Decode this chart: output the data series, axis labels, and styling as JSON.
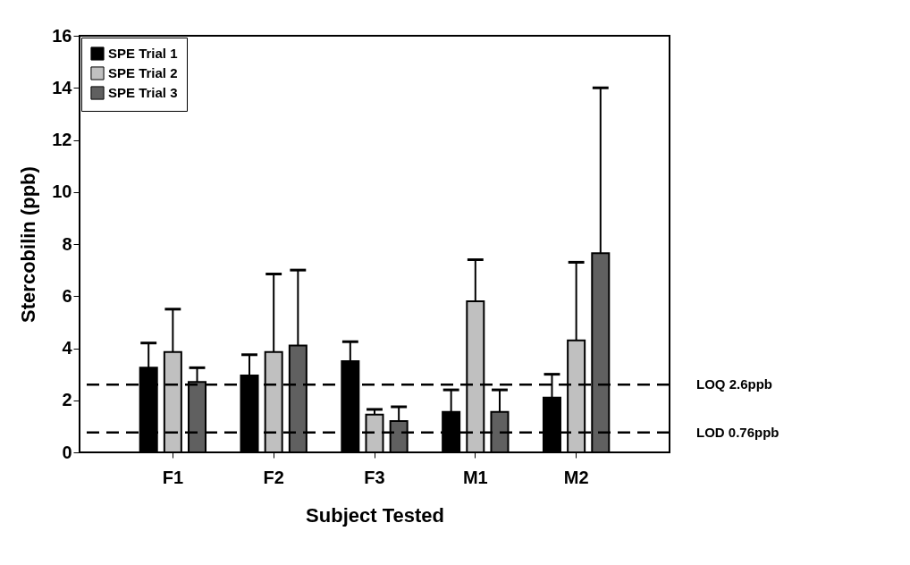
{
  "chart_data": {
    "type": "bar",
    "xlabel": "Subject Tested",
    "ylabel": "Stercobilin (ppb)",
    "categories": [
      "F1",
      "F2",
      "F3",
      "M1",
      "M2"
    ],
    "series": [
      {
        "name": "SPE Trial 1",
        "color": "#000000",
        "values": [
          3.25,
          2.95,
          3.5,
          1.55,
          2.1
        ],
        "errors": [
          [
            3.25,
            4.2
          ],
          [
            2.95,
            3.75
          ],
          [
            3.5,
            4.25
          ],
          [
            1.55,
            2.4
          ],
          [
            2.1,
            3.0
          ]
        ]
      },
      {
        "name": "SPE Trial 2",
        "color": "#c0c0c0",
        "values": [
          3.85,
          3.85,
          1.45,
          5.8,
          4.3
        ],
        "errors": [
          [
            3.85,
            5.5
          ],
          [
            3.85,
            6.85
          ],
          [
            1.45,
            1.65
          ],
          [
            5.8,
            7.4
          ],
          [
            4.3,
            7.3
          ]
        ]
      },
      {
        "name": "SPE Trial 3",
        "color": "#606060",
        "values": [
          2.7,
          4.1,
          1.2,
          1.55,
          7.65
        ],
        "errors": [
          [
            2.7,
            3.25
          ],
          [
            4.1,
            7.0
          ],
          [
            1.2,
            1.75
          ],
          [
            1.55,
            2.4
          ],
          [
            7.65,
            14.0
          ]
        ]
      }
    ],
    "ylim": [
      0,
      16
    ],
    "yticks": [
      0,
      2,
      4,
      6,
      8,
      10,
      12,
      14,
      16
    ],
    "grid": false,
    "legend": "top left",
    "ref_lines": [
      {
        "axis": "y",
        "value": 2.6,
        "label": "LOQ 2.6ppb",
        "line_style": "dashed"
      },
      {
        "axis": "y",
        "value": 0.76,
        "label": "LOD 0.76ppb",
        "line_style": "dashed"
      }
    ]
  }
}
